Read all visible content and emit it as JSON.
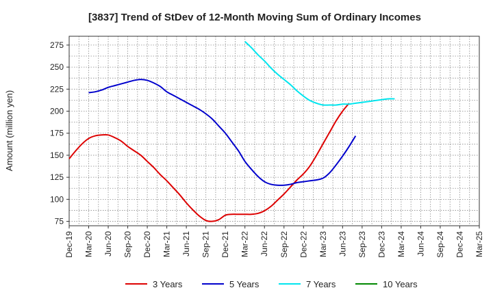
{
  "chart_data": {
    "type": "line",
    "title": "[3837]  Trend of StDev of 12-Month Moving Sum of Ordinary Incomes",
    "ylabel": "Amount (million yen)",
    "xlabel": "",
    "ylim": [
      70,
      285
    ],
    "grid": true,
    "legend_position": "bottom",
    "x_ticks": [
      "Dec-19",
      "Mar-20",
      "Jun-20",
      "Sep-20",
      "Dec-20",
      "Mar-21",
      "Jun-21",
      "Sep-21",
      "Dec-21",
      "Mar-22",
      "Jun-22",
      "Sep-22",
      "Dec-22",
      "Mar-23",
      "Jun-23",
      "Sep-23",
      "Dec-23",
      "Mar-24",
      "Jun-24",
      "Sep-24",
      "Dec-24",
      "Mar-25"
    ],
    "y_ticks": [
      75,
      100,
      125,
      150,
      175,
      200,
      225,
      250,
      275
    ],
    "series": [
      {
        "name": "3 Years",
        "color": "#dd0000",
        "values": [
          146,
          155,
          163,
          169,
          172,
          173,
          173,
          170,
          166,
          160,
          155,
          150,
          143,
          136,
          128,
          121,
          113,
          105,
          96,
          88,
          81,
          76,
          75,
          77,
          82,
          83,
          83,
          83,
          83,
          84,
          87,
          92,
          99,
          106,
          114,
          122,
          129,
          138,
          150,
          163,
          176,
          189,
          200,
          209
        ]
      },
      {
        "name": "5 Years",
        "color": "#0000cc",
        "values": [
          221,
          222,
          224,
          227,
          229,
          231,
          233,
          235,
          236,
          235,
          232,
          228,
          222,
          218,
          214,
          210,
          206,
          202,
          197,
          191,
          183,
          175,
          165,
          155,
          143,
          134,
          126,
          120,
          117,
          116,
          116,
          117,
          119,
          120,
          121,
          122,
          124,
          130,
          139,
          149,
          160,
          172
        ]
      },
      {
        "name": "7 Years",
        "color": "#00e5ee",
        "values": [
          279,
          272,
          264,
          257,
          249,
          242,
          236,
          230,
          223,
          217,
          212,
          209,
          207,
          207,
          207,
          208,
          208,
          209,
          210,
          211,
          212,
          213,
          214,
          214
        ]
      },
      {
        "name": "10 Years",
        "color": "#008800",
        "values": []
      }
    ]
  }
}
